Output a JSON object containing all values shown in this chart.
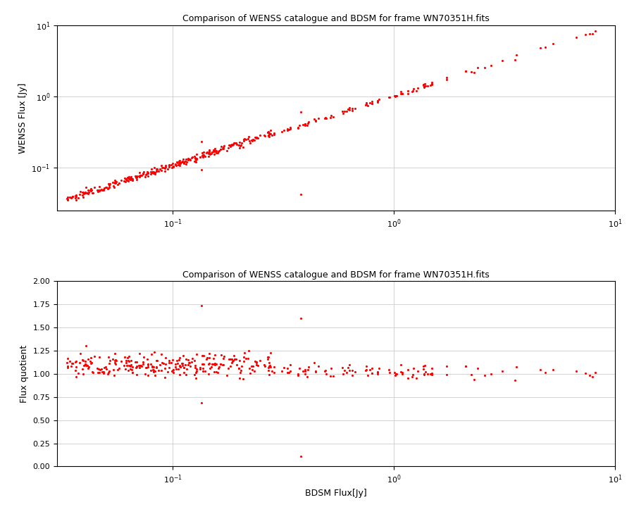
{
  "title": "Comparison of WENSS catalogue and BDSM for frame WN70351H.fits",
  "xlabel_bottom": "BDSM Flux[Jy]",
  "ylabel_top": "WENSS Flux [Jy]",
  "ylabel_bottom": "Flux quotient",
  "xlim_log": [
    0.03,
    10
  ],
  "ylim_log": [
    0.025,
    10
  ],
  "ylim_linear": [
    0.0,
    2.0
  ],
  "dot_color": "#ff0000",
  "dot_size": 5,
  "background_color": "#ffffff",
  "grid_color": "#cccccc",
  "seed": 123,
  "figsize": [
    9.0,
    7.2
  ],
  "dpi": 100
}
